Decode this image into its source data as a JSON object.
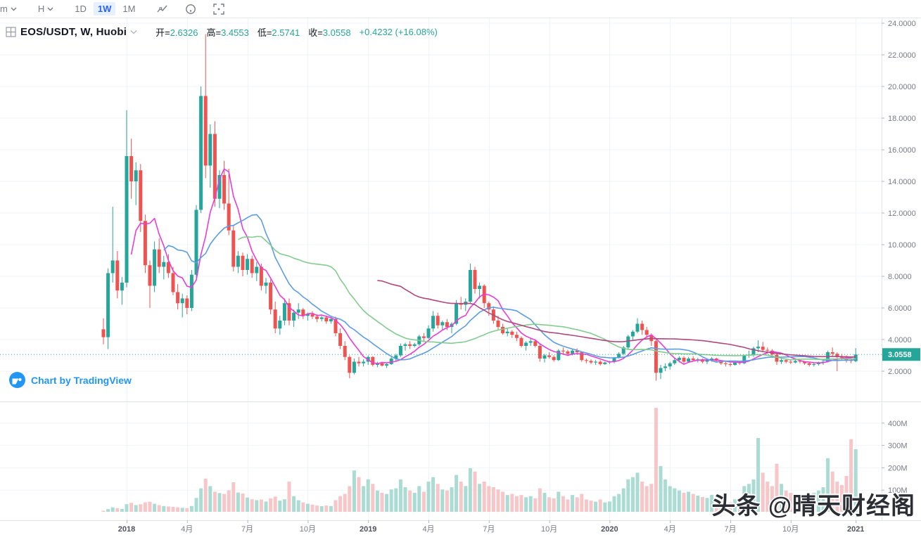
{
  "toolbar": {
    "minutes_label": "m",
    "hours_label": "H",
    "day_label": "1D",
    "week_label": "1W",
    "month_label": "1M",
    "active_interval": "1W"
  },
  "header": {
    "symbol_title": "EOS/USDT, W, Huobi",
    "open_label": "开=",
    "open_value": "2.6326",
    "high_label": "高=",
    "high_value": "3.4553",
    "low_label": "低=",
    "low_value": "2.5741",
    "close_label": "收=",
    "close_value": "3.0558",
    "change_value": "+0.4232 (+16.08%)"
  },
  "attribution": {
    "text": "Chart by TradingView"
  },
  "watermark": {
    "text": "头条 @晴天财经阁"
  },
  "chart_data": {
    "type": "candlestick",
    "symbol": "EOS/USDT",
    "interval": "W",
    "exchange": "Huobi",
    "current_price": "3.0558",
    "colors": {
      "up": "#26a69a",
      "down": "#ef5350",
      "volume_up": "#aadcd4",
      "volume_down": "#f6c6c9",
      "price_line": "#26a69a",
      "badge_bg": "#26a69a",
      "badge_text": "#ffffff",
      "grid": "#f0f3fa",
      "separator": "#e0e3eb",
      "axis_text": "#787b86",
      "axis_text_year": "#50535e"
    },
    "price_axis_ticks": [
      "24.0000",
      "22.0000",
      "20.0000",
      "18.0000",
      "16.0000",
      "14.0000",
      "12.0000",
      "10.0000",
      "8.0000",
      "6.0000",
      "4.0000",
      "2.0000"
    ],
    "volume_axis_ticks": [
      "400M",
      "300M",
      "200M",
      "100M"
    ],
    "time_axis_labels": [
      {
        "label": "2018",
        "week": 5,
        "year": true
      },
      {
        "label": "4月",
        "week": 18,
        "year": false
      },
      {
        "label": "7月",
        "week": 31,
        "year": false
      },
      {
        "label": "10月",
        "week": 44,
        "year": false
      },
      {
        "label": "2019",
        "week": 57,
        "year": true
      },
      {
        "label": "4月",
        "week": 70,
        "year": false
      },
      {
        "label": "7月",
        "week": 83,
        "year": false
      },
      {
        "label": "10月",
        "week": 96,
        "year": false
      },
      {
        "label": "2020",
        "week": 109,
        "year": true
      },
      {
        "label": "4月",
        "week": 122,
        "year": false
      },
      {
        "label": "7月",
        "week": 135,
        "year": false
      },
      {
        "label": "10月",
        "week": 148,
        "year": false
      },
      {
        "label": "2021",
        "week": 162,
        "year": true
      }
    ],
    "moving_averages": [
      {
        "period": 7,
        "color": "#e93cd8",
        "name": "MA7"
      },
      {
        "period": 14,
        "color": "#5c9ce6",
        "name": "MA14"
      },
      {
        "period": 30,
        "color": "#83cb8e",
        "name": "MA30"
      },
      {
        "period": 60,
        "color": "#b0487f",
        "name": "MA60"
      }
    ],
    "candles": [
      [
        4.65,
        5.35,
        3.7,
        4.15,
        5
      ],
      [
        4.15,
        8.5,
        3.4,
        8.2,
        12
      ],
      [
        8.2,
        12.4,
        7.6,
        9.0,
        20
      ],
      [
        9.0,
        9.6,
        6.6,
        7.1,
        16
      ],
      [
        7.1,
        7.95,
        6.2,
        7.6,
        13
      ],
      [
        7.6,
        18.5,
        7.3,
        15.6,
        34
      ],
      [
        15.6,
        16.7,
        12.9,
        14.0,
        40
      ],
      [
        14.0,
        15.2,
        12.5,
        14.7,
        30
      ],
      [
        14.7,
        15.1,
        10.8,
        11.5,
        34
      ],
      [
        11.5,
        11.9,
        8.2,
        8.7,
        42
      ],
      [
        8.7,
        9.0,
        6.0,
        7.4,
        45
      ],
      [
        7.4,
        10.2,
        7.0,
        9.7,
        36
      ],
      [
        9.7,
        10.4,
        8.2,
        8.6,
        30
      ],
      [
        8.6,
        9.3,
        7.8,
        8.9,
        26
      ],
      [
        8.9,
        9.4,
        7.9,
        8.2,
        24
      ],
      [
        8.2,
        8.6,
        6.8,
        7.0,
        22
      ],
      [
        7.0,
        7.5,
        5.9,
        6.3,
        20
      ],
      [
        6.3,
        6.9,
        5.4,
        6.6,
        18
      ],
      [
        6.6,
        6.8,
        5.6,
        6.0,
        16
      ],
      [
        6.0,
        8.4,
        5.8,
        8.1,
        26
      ],
      [
        8.1,
        12.5,
        7.9,
        12.2,
        62
      ],
      [
        12.2,
        20.0,
        12.0,
        19.4,
        105
      ],
      [
        19.4,
        23.3,
        14.2,
        15.0,
        148
      ],
      [
        15.0,
        17.6,
        13.6,
        17.0,
        115
      ],
      [
        17.0,
        17.8,
        12.4,
        12.9,
        90
      ],
      [
        12.9,
        14.7,
        12.3,
        14.4,
        84
      ],
      [
        14.4,
        15.3,
        12.2,
        12.6,
        80
      ],
      [
        12.6,
        14.8,
        10.6,
        10.9,
        96
      ],
      [
        10.9,
        11.2,
        8.3,
        8.6,
        132
      ],
      [
        8.6,
        9.6,
        8.2,
        9.3,
        86
      ],
      [
        9.3,
        9.5,
        8.0,
        8.4,
        82
      ],
      [
        8.4,
        9.4,
        8.1,
        9.1,
        64
      ],
      [
        9.1,
        9.3,
        7.9,
        8.2,
        56
      ],
      [
        8.2,
        8.9,
        7.7,
        8.6,
        52
      ],
      [
        8.6,
        8.8,
        7.1,
        7.4,
        55
      ],
      [
        7.4,
        7.9,
        6.9,
        7.6,
        46
      ],
      [
        7.6,
        7.8,
        5.6,
        5.9,
        60
      ],
      [
        5.9,
        6.4,
        4.4,
        4.7,
        68
      ],
      [
        4.7,
        5.5,
        4.3,
        5.2,
        50
      ],
      [
        5.2,
        6.6,
        4.9,
        6.3,
        56
      ],
      [
        6.3,
        6.6,
        4.9,
        5.2,
        135
      ],
      [
        5.2,
        5.9,
        4.8,
        5.7,
        70
      ],
      [
        5.7,
        6.3,
        5.3,
        5.9,
        52
      ],
      [
        5.9,
        6.0,
        5.3,
        5.5,
        42
      ],
      [
        5.5,
        5.7,
        5.2,
        5.6,
        36
      ],
      [
        5.6,
        5.8,
        5.3,
        5.45,
        32
      ],
      [
        5.45,
        5.6,
        5.1,
        5.3,
        28
      ],
      [
        5.3,
        5.5,
        5.15,
        5.4,
        25
      ],
      [
        5.4,
        5.5,
        5.0,
        5.15,
        28
      ],
      [
        5.15,
        5.4,
        5.0,
        5.3,
        26
      ],
      [
        5.3,
        5.45,
        4.2,
        4.4,
        52
      ],
      [
        4.4,
        4.7,
        3.4,
        3.6,
        70
      ],
      [
        3.6,
        3.9,
        2.7,
        2.9,
        80
      ],
      [
        2.9,
        3.0,
        1.55,
        1.9,
        115
      ],
      [
        1.9,
        2.8,
        1.8,
        2.6,
        185
      ],
      [
        2.6,
        2.9,
        2.3,
        2.5,
        155
      ],
      [
        2.5,
        2.75,
        2.3,
        2.6,
        115
      ],
      [
        2.6,
        3.0,
        2.4,
        2.9,
        145
      ],
      [
        2.9,
        2.95,
        2.3,
        2.4,
        125
      ],
      [
        2.4,
        2.6,
        2.25,
        2.5,
        95
      ],
      [
        2.5,
        2.6,
        2.3,
        2.35,
        85
      ],
      [
        2.35,
        2.5,
        2.2,
        2.45,
        80
      ],
      [
        2.45,
        2.9,
        2.4,
        2.8,
        100
      ],
      [
        2.8,
        3.1,
        2.6,
        3.0,
        105
      ],
      [
        3.0,
        3.75,
        2.9,
        3.6,
        145
      ],
      [
        3.6,
        3.8,
        3.3,
        3.7,
        110
      ],
      [
        3.7,
        3.9,
        3.4,
        3.6,
        95
      ],
      [
        3.6,
        3.8,
        3.5,
        3.7,
        85
      ],
      [
        3.7,
        4.3,
        3.6,
        4.2,
        115
      ],
      [
        4.2,
        4.4,
        3.9,
        4.1,
        90
      ],
      [
        4.1,
        4.9,
        4.05,
        4.7,
        135
      ],
      [
        4.7,
        5.8,
        4.5,
        5.5,
        155
      ],
      [
        5.5,
        5.7,
        4.7,
        4.9,
        125
      ],
      [
        4.9,
        5.2,
        4.6,
        5.1,
        100
      ],
      [
        5.1,
        5.3,
        4.6,
        4.8,
        95
      ],
      [
        4.8,
        5.1,
        4.4,
        5.0,
        110
      ],
      [
        5.0,
        6.5,
        4.9,
        6.3,
        165
      ],
      [
        6.3,
        6.7,
        5.9,
        6.2,
        135
      ],
      [
        6.2,
        6.6,
        5.8,
        6.4,
        115
      ],
      [
        6.4,
        8.8,
        6.3,
        8.4,
        195
      ],
      [
        8.4,
        8.6,
        6.9,
        7.2,
        180
      ],
      [
        7.2,
        7.6,
        6.6,
        7.4,
        125
      ],
      [
        7.4,
        7.5,
        6.0,
        6.3,
        135
      ],
      [
        6.3,
        6.4,
        5.5,
        5.9,
        115
      ],
      [
        5.9,
        6.1,
        5.0,
        5.2,
        110
      ],
      [
        5.2,
        5.5,
        4.6,
        4.8,
        100
      ],
      [
        4.8,
        5.0,
        4.3,
        4.4,
        90
      ],
      [
        4.4,
        4.7,
        4.2,
        4.5,
        75
      ],
      [
        4.5,
        4.6,
        4.1,
        4.3,
        80
      ],
      [
        4.3,
        4.5,
        3.9,
        4.1,
        70
      ],
      [
        4.1,
        4.2,
        3.5,
        3.6,
        75
      ],
      [
        3.6,
        3.9,
        3.3,
        3.8,
        65
      ],
      [
        3.8,
        4.1,
        3.6,
        3.9,
        70
      ],
      [
        3.9,
        4.0,
        3.5,
        3.6,
        60
      ],
      [
        3.6,
        3.7,
        2.6,
        2.8,
        105
      ],
      [
        2.8,
        3.1,
        2.55,
        3.0,
        85
      ],
      [
        3.0,
        3.2,
        2.8,
        2.9,
        65
      ],
      [
        2.9,
        3.0,
        2.6,
        2.7,
        60
      ],
      [
        2.7,
        3.4,
        2.65,
        3.3,
        90
      ],
      [
        3.3,
        3.5,
        3.1,
        3.25,
        70
      ],
      [
        3.25,
        3.35,
        2.95,
        3.1,
        55
      ],
      [
        3.1,
        3.4,
        3.0,
        3.3,
        75
      ],
      [
        3.3,
        3.45,
        3.1,
        3.2,
        65
      ],
      [
        3.2,
        3.25,
        2.6,
        2.7,
        80
      ],
      [
        2.7,
        2.8,
        2.5,
        2.65,
        55
      ],
      [
        2.65,
        2.75,
        2.45,
        2.55,
        50
      ],
      [
        2.55,
        2.7,
        2.4,
        2.6,
        45
      ],
      [
        2.6,
        2.7,
        2.35,
        2.45,
        55
      ],
      [
        2.45,
        2.6,
        2.4,
        2.55,
        42
      ],
      [
        2.55,
        2.65,
        2.45,
        2.6,
        46
      ],
      [
        2.6,
        2.9,
        2.5,
        2.85,
        70
      ],
      [
        2.85,
        3.2,
        2.8,
        3.1,
        80
      ],
      [
        3.1,
        3.6,
        3.0,
        3.5,
        105
      ],
      [
        3.5,
        4.3,
        3.4,
        4.2,
        145
      ],
      [
        4.2,
        4.6,
        3.9,
        4.5,
        155
      ],
      [
        4.5,
        5.35,
        4.4,
        5.0,
        175
      ],
      [
        5.0,
        5.2,
        4.3,
        4.6,
        135
      ],
      [
        4.6,
        4.8,
        4.1,
        4.3,
        115
      ],
      [
        4.3,
        4.4,
        3.6,
        3.9,
        125
      ],
      [
        3.9,
        4.0,
        1.4,
        1.9,
        465
      ],
      [
        1.9,
        2.4,
        1.5,
        2.2,
        205
      ],
      [
        2.2,
        2.5,
        2.0,
        2.3,
        145
      ],
      [
        2.3,
        2.6,
        2.1,
        2.5,
        115
      ],
      [
        2.5,
        2.8,
        2.4,
        2.7,
        105
      ],
      [
        2.7,
        2.95,
        2.55,
        2.85,
        95
      ],
      [
        2.85,
        2.95,
        2.5,
        2.6,
        85
      ],
      [
        2.6,
        2.9,
        2.55,
        2.8,
        90
      ],
      [
        2.8,
        2.95,
        2.6,
        2.7,
        80
      ],
      [
        2.7,
        2.85,
        2.55,
        2.75,
        72
      ],
      [
        2.75,
        2.8,
        2.5,
        2.6,
        66
      ],
      [
        2.6,
        2.75,
        2.45,
        2.7,
        62
      ],
      [
        2.7,
        2.9,
        2.6,
        2.8,
        76
      ],
      [
        2.8,
        2.85,
        2.55,
        2.65,
        58
      ],
      [
        2.65,
        2.7,
        2.4,
        2.5,
        52
      ],
      [
        2.5,
        2.6,
        2.3,
        2.45,
        48
      ],
      [
        2.45,
        2.55,
        2.3,
        2.4,
        42
      ],
      [
        2.4,
        2.6,
        2.35,
        2.55,
        56
      ],
      [
        2.55,
        2.65,
        2.4,
        2.5,
        52
      ],
      [
        2.5,
        3.05,
        2.45,
        3.0,
        115
      ],
      [
        3.0,
        3.3,
        2.85,
        3.05,
        125
      ],
      [
        3.05,
        3.55,
        2.9,
        3.45,
        145
      ],
      [
        3.45,
        3.95,
        3.2,
        3.55,
        330
      ],
      [
        3.55,
        3.85,
        3.2,
        3.35,
        175
      ],
      [
        3.35,
        3.5,
        3.1,
        3.3,
        135
      ],
      [
        3.3,
        3.4,
        2.9,
        3.05,
        115
      ],
      [
        3.05,
        3.1,
        2.4,
        2.6,
        215
      ],
      [
        2.6,
        2.85,
        2.45,
        2.7,
        125
      ],
      [
        2.7,
        2.8,
        2.5,
        2.6,
        95
      ],
      [
        2.6,
        2.7,
        2.45,
        2.55,
        85
      ],
      [
        2.55,
        2.75,
        2.5,
        2.65,
        80
      ],
      [
        2.65,
        2.7,
        2.5,
        2.6,
        66
      ],
      [
        2.6,
        2.65,
        2.4,
        2.5,
        72
      ],
      [
        2.5,
        2.6,
        2.3,
        2.4,
        76
      ],
      [
        2.4,
        2.55,
        2.3,
        2.45,
        85
      ],
      [
        2.45,
        2.6,
        2.35,
        2.55,
        95
      ],
      [
        2.55,
        2.7,
        2.4,
        2.6,
        110
      ],
      [
        2.6,
        3.3,
        2.55,
        3.2,
        240
      ],
      [
        3.2,
        3.5,
        2.9,
        3.1,
        180
      ],
      [
        3.1,
        3.2,
        2.0,
        2.95,
        135
      ],
      [
        2.95,
        3.1,
        2.7,
        2.85,
        120
      ],
      [
        2.85,
        3.0,
        2.55,
        2.7,
        160
      ],
      [
        2.7,
        2.9,
        2.5,
        2.65,
        325
      ],
      [
        2.6326,
        3.4553,
        2.5741,
        3.0558,
        280
      ]
    ]
  }
}
